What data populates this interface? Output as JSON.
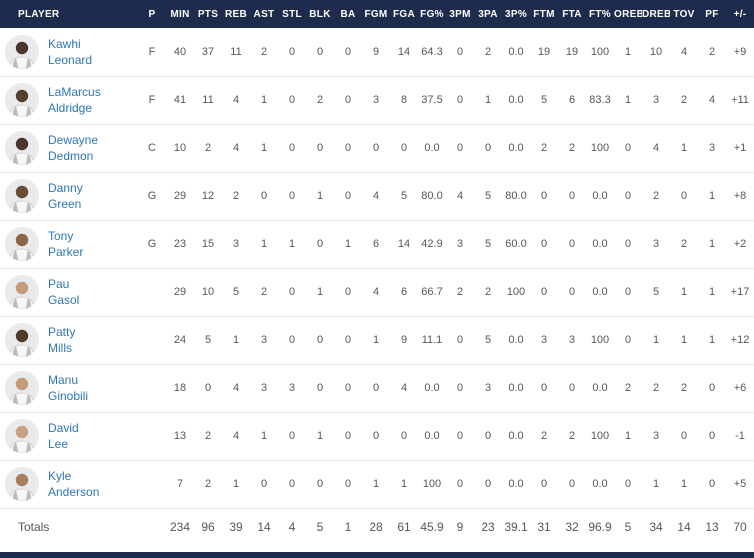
{
  "colors": {
    "header_bg": "#1d2b4c",
    "player_link": "#2e77b4",
    "stat_text": "#56575b",
    "row_divider": "#e8e8e8"
  },
  "table": {
    "columns": [
      "PLAYER",
      "P",
      "MIN",
      "PTS",
      "REB",
      "AST",
      "STL",
      "BLK",
      "BA",
      "FGM",
      "FGA",
      "FG%",
      "3PM",
      "3PA",
      "3P%",
      "FTM",
      "FTA",
      "FT%",
      "OREB",
      "DREB",
      "TOV",
      "PF",
      "+/-"
    ],
    "rows": [
      {
        "first": "Kawhi",
        "last": "Leonard",
        "pos": "F",
        "avatar_tone": "#4a352b",
        "stats": [
          "40",
          "37",
          "11",
          "2",
          "0",
          "0",
          "0",
          "9",
          "14",
          "64.3",
          "0",
          "2",
          "0.0",
          "19",
          "19",
          "100",
          "1",
          "10",
          "4",
          "2",
          "+9"
        ]
      },
      {
        "first": "LaMarcus",
        "last": "Aldridge",
        "pos": "F",
        "avatar_tone": "#54402f",
        "stats": [
          "41",
          "11",
          "4",
          "1",
          "0",
          "2",
          "0",
          "3",
          "8",
          "37.5",
          "0",
          "1",
          "0.0",
          "5",
          "6",
          "83.3",
          "1",
          "3",
          "2",
          "4",
          "+11"
        ]
      },
      {
        "first": "Dewayne",
        "last": "Dedmon",
        "pos": "C",
        "avatar_tone": "#4a352b",
        "stats": [
          "10",
          "2",
          "4",
          "1",
          "0",
          "0",
          "0",
          "0",
          "0",
          "0.0",
          "0",
          "0",
          "0.0",
          "2",
          "2",
          "100",
          "0",
          "4",
          "1",
          "3",
          "+1"
        ]
      },
      {
        "first": "Danny",
        "last": "Green",
        "pos": "G",
        "avatar_tone": "#6b4b38",
        "stats": [
          "29",
          "12",
          "2",
          "0",
          "0",
          "1",
          "0",
          "4",
          "5",
          "80.0",
          "4",
          "5",
          "80.0",
          "0",
          "0",
          "0.0",
          "0",
          "2",
          "0",
          "1",
          "+8"
        ]
      },
      {
        "first": "Tony",
        "last": "Parker",
        "pos": "G",
        "avatar_tone": "#8a6548",
        "stats": [
          "23",
          "15",
          "3",
          "1",
          "1",
          "0",
          "1",
          "6",
          "14",
          "42.9",
          "3",
          "5",
          "60.0",
          "0",
          "0",
          "0.0",
          "0",
          "3",
          "2",
          "1",
          "+2"
        ]
      },
      {
        "first": "Pau",
        "last": "Gasol",
        "pos": "",
        "avatar_tone": "#c39a78",
        "stats": [
          "29",
          "10",
          "5",
          "2",
          "0",
          "1",
          "0",
          "4",
          "6",
          "66.7",
          "2",
          "2",
          "100",
          "0",
          "0",
          "0.0",
          "0",
          "5",
          "1",
          "1",
          "+17"
        ]
      },
      {
        "first": "Patty",
        "last": "Mills",
        "pos": "",
        "avatar_tone": "#4f382c",
        "stats": [
          "24",
          "5",
          "1",
          "3",
          "0",
          "0",
          "0",
          "1",
          "9",
          "11.1",
          "0",
          "5",
          "0.0",
          "3",
          "3",
          "100",
          "0",
          "1",
          "1",
          "1",
          "+12"
        ]
      },
      {
        "first": "Manu",
        "last": "Ginobili",
        "pos": "",
        "avatar_tone": "#c49a76",
        "stats": [
          "18",
          "0",
          "4",
          "3",
          "3",
          "0",
          "0",
          "0",
          "4",
          "0.0",
          "0",
          "3",
          "0.0",
          "0",
          "0",
          "0.0",
          "2",
          "2",
          "2",
          "0",
          "+6"
        ]
      },
      {
        "first": "David",
        "last": "Lee",
        "pos": "",
        "avatar_tone": "#c8a182",
        "stats": [
          "13",
          "2",
          "4",
          "1",
          "0",
          "1",
          "0",
          "0",
          "0",
          "0.0",
          "0",
          "0",
          "0.0",
          "2",
          "2",
          "100",
          "1",
          "3",
          "0",
          "0",
          "-1"
        ]
      },
      {
        "first": "Kyle",
        "last": "Anderson",
        "pos": "",
        "avatar_tone": "#a97e5f",
        "stats": [
          "7",
          "2",
          "1",
          "0",
          "0",
          "0",
          "0",
          "1",
          "1",
          "100",
          "0",
          "0",
          "0.0",
          "0",
          "0",
          "0.0",
          "0",
          "1",
          "1",
          "0",
          "+5"
        ]
      }
    ],
    "totals": {
      "label": "Totals",
      "stats": [
        "234",
        "96",
        "39",
        "14",
        "4",
        "5",
        "1",
        "28",
        "61",
        "45.9",
        "9",
        "23",
        "39.1",
        "31",
        "32",
        "96.9",
        "5",
        "34",
        "14",
        "13",
        "70"
      ]
    }
  }
}
